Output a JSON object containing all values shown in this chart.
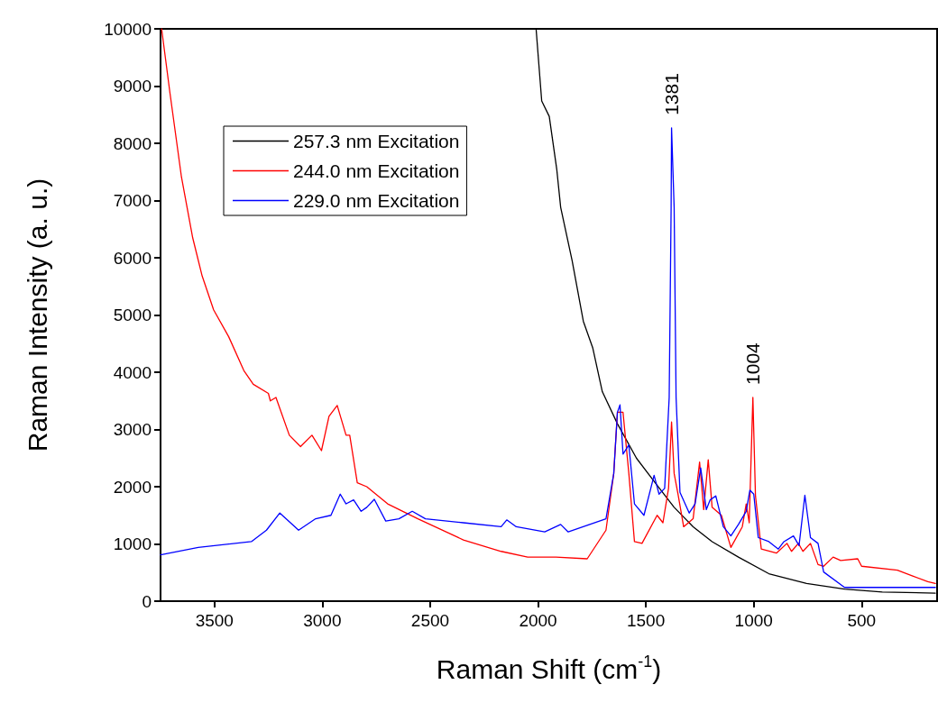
{
  "chart_data": {
    "type": "line",
    "xlabel": "Raman Shift (cm$^{-1}$)",
    "ylabel": "Raman Intensity (a. u.)",
    "xlim": [
      3750,
      150
    ],
    "xticks": [
      3500,
      3000,
      2500,
      2000,
      1500,
      1000,
      500
    ],
    "ylim": [
      0,
      10000
    ],
    "yticks": [
      0,
      1000,
      2000,
      3000,
      4000,
      5000,
      6000,
      7000,
      8000,
      9000,
      10000
    ],
    "grid": false,
    "legend": "top left",
    "marker": "none",
    "line_style": "solid",
    "annotations": [
      {
        "text": "1381",
        "x": 1381,
        "y": 8270
      },
      {
        "text": "1004",
        "x": 1004,
        "y": 3560
      }
    ],
    "series": [
      {
        "name": "257.3 nm Excitation",
        "color": "#000000",
        "x": [
          2009,
          1983,
          1948,
          1913,
          1895,
          1842,
          1790,
          1746,
          1702,
          1632,
          1544,
          1457,
          1369,
          1281,
          1193,
          1071,
          930,
          755,
          579,
          404,
          158
        ],
        "values": [
          10000,
          8740,
          8470,
          7540,
          6880,
          5950,
          4890,
          4420,
          3660,
          3100,
          2500,
          2070,
          1640,
          1300,
          1040,
          770,
          480,
          310,
          210,
          160,
          140
        ]
      },
      {
        "name": "244.0 nm Excitation",
        "color": "#ff0000",
        "x": [
          3745,
          3706,
          3653,
          3601,
          3557,
          3504,
          3434,
          3364,
          3320,
          3250,
          3241,
          3215,
          3153,
          3101,
          3048,
          3004,
          2969,
          2931,
          2890,
          2873,
          2838,
          2794,
          2697,
          2557,
          2346,
          2171,
          2048,
          1917,
          1772,
          1685,
          1649,
          1632,
          1606,
          1579,
          1553,
          1518,
          1448,
          1421,
          1395,
          1381,
          1369,
          1351,
          1325,
          1281,
          1251,
          1232,
          1211,
          1193,
          1150,
          1106,
          1053,
          1035,
          1021,
          1004,
          992,
          965,
          895,
          846,
          825,
          793,
          772,
          737,
          702,
          676,
          632,
          597,
          518,
          500,
          334,
          263,
          193,
          158
        ],
        "values": [
          10000,
          8870,
          7410,
          6350,
          5680,
          5090,
          4620,
          4030,
          3790,
          3630,
          3500,
          3560,
          2900,
          2700,
          2900,
          2630,
          3230,
          3420,
          2900,
          2900,
          2070,
          2000,
          1700,
          1440,
          1070,
          870,
          770,
          770,
          740,
          1240,
          2230,
          3300,
          3300,
          2230,
          1040,
          1010,
          1500,
          1370,
          1970,
          3130,
          2230,
          1870,
          1300,
          1440,
          2430,
          1600,
          2470,
          1640,
          1500,
          940,
          1300,
          1700,
          1370,
          3560,
          1840,
          910,
          840,
          1010,
          870,
          1010,
          870,
          1010,
          640,
          610,
          770,
          710,
          740,
          610,
          540,
          440,
          340,
          310
        ]
      },
      {
        "name": "229.0 nm Excitation",
        "color": "#0000ff",
        "x": [
          3750,
          3575,
          3329,
          3259,
          3197,
          3110,
          3031,
          2960,
          2917,
          2890,
          2855,
          2820,
          2794,
          2759,
          2706,
          2645,
          2583,
          2522,
          2346,
          2171,
          2145,
          2101,
          1969,
          1895,
          1860,
          1685,
          1649,
          1632,
          1620,
          1606,
          1579,
          1553,
          1509,
          1462,
          1439,
          1413,
          1392,
          1383,
          1381,
          1369,
          1360,
          1342,
          1299,
          1272,
          1246,
          1220,
          1202,
          1176,
          1141,
          1106,
          1071,
          1035,
          1018,
          1000,
          979,
          930,
          886,
          860,
          816,
          790,
          763,
          737,
          702,
          676,
          579,
          404,
          158
        ],
        "values": [
          810,
          940,
          1040,
          1240,
          1540,
          1240,
          1440,
          1500,
          1870,
          1700,
          1770,
          1570,
          1640,
          1780,
          1400,
          1440,
          1570,
          1440,
          1370,
          1300,
          1420,
          1300,
          1210,
          1340,
          1210,
          1440,
          2230,
          3300,
          3430,
          2570,
          2730,
          1700,
          1500,
          2200,
          1870,
          1970,
          3560,
          6880,
          8270,
          6880,
          3560,
          1900,
          1540,
          1700,
          2330,
          1600,
          1770,
          1840,
          1300,
          1140,
          1340,
          1570,
          1940,
          1870,
          1110,
          1040,
          910,
          1040,
          1140,
          970,
          1850,
          1110,
          1010,
          510,
          240,
          240,
          240
        ]
      }
    ]
  }
}
